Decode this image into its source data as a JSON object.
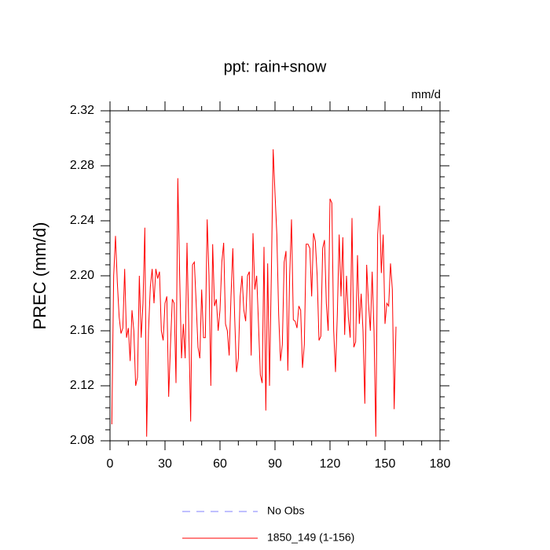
{
  "chart_data": {
    "type": "line",
    "title": "ppt: rain+snow",
    "units": "mm/d",
    "ylabel": "PREC  (mm/d)",
    "x": [
      1,
      2,
      3,
      4,
      5,
      6,
      7,
      8,
      9,
      10,
      11,
      12,
      13,
      14,
      15,
      16,
      17,
      18,
      19,
      20,
      21,
      22,
      23,
      24,
      25,
      26,
      27,
      28,
      29,
      30,
      31,
      32,
      33,
      34,
      35,
      36,
      37,
      38,
      39,
      40,
      41,
      42,
      43,
      44,
      45,
      46,
      47,
      48,
      49,
      50,
      51,
      52,
      53,
      54,
      55,
      56,
      57,
      58,
      59,
      60,
      61,
      62,
      63,
      64,
      65,
      66,
      67,
      68,
      69,
      70,
      71,
      72,
      73,
      74,
      75,
      76,
      77,
      78,
      79,
      80,
      81,
      82,
      83,
      84,
      85,
      86,
      87,
      88,
      89,
      90,
      91,
      92,
      93,
      94,
      95,
      96,
      97,
      98,
      99,
      100,
      101,
      102,
      103,
      104,
      105,
      106,
      107,
      108,
      109,
      110,
      111,
      112,
      113,
      114,
      115,
      116,
      117,
      118,
      119,
      120,
      121,
      122,
      123,
      124,
      125,
      126,
      127,
      128,
      129,
      130,
      131,
      132,
      133,
      134,
      135,
      136,
      137,
      138,
      139,
      140,
      141,
      142,
      143,
      144,
      145,
      146,
      147,
      148,
      149,
      150,
      151,
      152,
      153,
      154,
      155,
      156
    ],
    "series": [
      {
        "name": "1850_149 (1-156)",
        "color": "#ff0000",
        "values": [
          2.092,
          2.2,
          2.229,
          2.195,
          2.17,
          2.158,
          2.162,
          2.205,
          2.155,
          2.162,
          2.138,
          2.175,
          2.16,
          2.12,
          2.126,
          2.2,
          2.155,
          2.18,
          2.235,
          2.083,
          2.16,
          2.192,
          2.205,
          2.18,
          2.205,
          2.198,
          2.203,
          2.16,
          2.153,
          2.18,
          2.185,
          2.112,
          2.15,
          2.183,
          2.18,
          2.122,
          2.271,
          2.2,
          2.14,
          2.165,
          2.14,
          2.224,
          2.16,
          2.094,
          2.208,
          2.21,
          2.18,
          2.148,
          2.14,
          2.19,
          2.155,
          2.155,
          2.241,
          2.2,
          2.12,
          2.223,
          2.178,
          2.183,
          2.16,
          2.175,
          2.21,
          2.224,
          2.165,
          2.16,
          2.142,
          2.185,
          2.22,
          2.17,
          2.13,
          2.14,
          2.185,
          2.2,
          2.175,
          2.167,
          2.2,
          2.203,
          2.142,
          2.231,
          2.19,
          2.2,
          2.165,
          2.128,
          2.122,
          2.221,
          2.102,
          2.209,
          2.12,
          2.2,
          2.292,
          2.26,
          2.23,
          2.172,
          2.138,
          2.15,
          2.21,
          2.218,
          2.131,
          2.2,
          2.241,
          2.168,
          2.167,
          2.162,
          2.178,
          2.175,
          2.133,
          2.15,
          2.223,
          2.223,
          2.22,
          2.185,
          2.231,
          2.225,
          2.2,
          2.153,
          2.156,
          2.22,
          2.226,
          2.18,
          2.16,
          2.256,
          2.253,
          2.16,
          2.13,
          2.172,
          2.23,
          2.185,
          2.228,
          2.157,
          2.2,
          2.17,
          2.155,
          2.242,
          2.148,
          2.152,
          2.215,
          2.165,
          2.187,
          2.16,
          2.107,
          2.208,
          2.18,
          2.16,
          2.203,
          2.16,
          2.083,
          2.23,
          2.251,
          2.202,
          2.23,
          2.165,
          2.18,
          2.178,
          2.209,
          2.19,
          2.103,
          2.163
        ]
      }
    ],
    "reference": {
      "name": "No Obs",
      "color": "#8080ff",
      "dashed": true
    },
    "xlim": [
      0,
      180
    ],
    "xticks": [
      0,
      30,
      60,
      90,
      120,
      150,
      180
    ],
    "xminorticks": [
      10,
      20,
      40,
      50,
      70,
      80,
      100,
      110,
      130,
      140,
      160,
      170
    ],
    "ylim": [
      2.08,
      2.32
    ],
    "yticks": [
      {
        "value": 2.08,
        "label": "2.08"
      },
      2.12,
      2.16,
      {
        "value": 2.2,
        "label": "2.20"
      },
      2.24,
      2.28,
      2.32
    ],
    "yminorticks": [
      2.088,
      2.096,
      2.104,
      2.112,
      2.128,
      2.136,
      2.144,
      2.152,
      2.168,
      2.176,
      2.184,
      2.192,
      2.208,
      2.216,
      2.224,
      2.232,
      2.248,
      2.256,
      2.264,
      2.272,
      2.288,
      2.296,
      2.304,
      2.312
    ]
  }
}
